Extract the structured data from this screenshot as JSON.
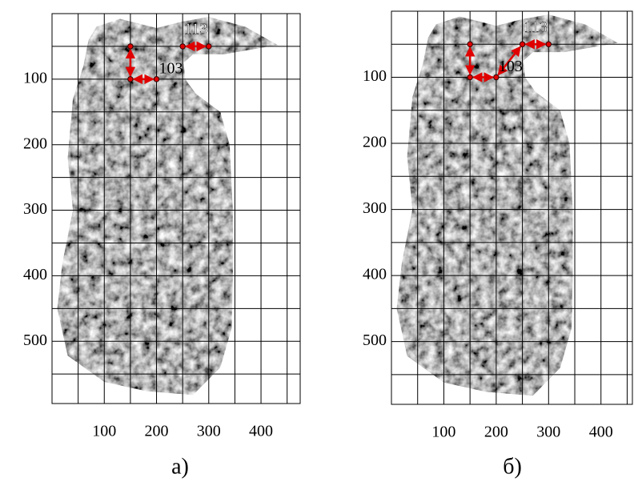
{
  "chart_data": [
    {
      "type": "image",
      "xlim": [
        0,
        475
      ],
      "ylim": [
        0,
        595
      ],
      "y_inverted": true,
      "xticks": [
        100,
        200,
        300,
        400
      ],
      "yticks": [
        100,
        200,
        300,
        400,
        500
      ],
      "grid_x": [
        50,
        100,
        150,
        200,
        250,
        300,
        350,
        400,
        450
      ],
      "grid_y": [
        50,
        100,
        150,
        200,
        250,
        300,
        350,
        400,
        450,
        500,
        550
      ],
      "path": {
        "color": "#e00000",
        "x": [
          150,
          150,
          200,
          null,
          250,
          300
        ],
        "y": [
          50,
          100,
          100,
          null,
          50,
          50
        ]
      },
      "annotations": [
        "113",
        "103"
      ],
      "label": "а)"
    },
    {
      "type": "image",
      "xlim": [
        0,
        460
      ],
      "ylim": [
        0,
        595
      ],
      "y_inverted": true,
      "xticks": [
        100,
        200,
        300,
        400
      ],
      "yticks": [
        100,
        200,
        300,
        400,
        500
      ],
      "grid_x": [
        50,
        100,
        150,
        200,
        250,
        300,
        350,
        400,
        450
      ],
      "grid_y": [
        50,
        100,
        150,
        200,
        250,
        300,
        350,
        400,
        450,
        500,
        550
      ],
      "path": {
        "color": "#e00000",
        "x": [
          150,
          150,
          200,
          250,
          300
        ],
        "y": [
          50,
          100,
          100,
          50,
          50
        ]
      },
      "annotations": [
        "113",
        "103"
      ],
      "label": "б)"
    }
  ]
}
